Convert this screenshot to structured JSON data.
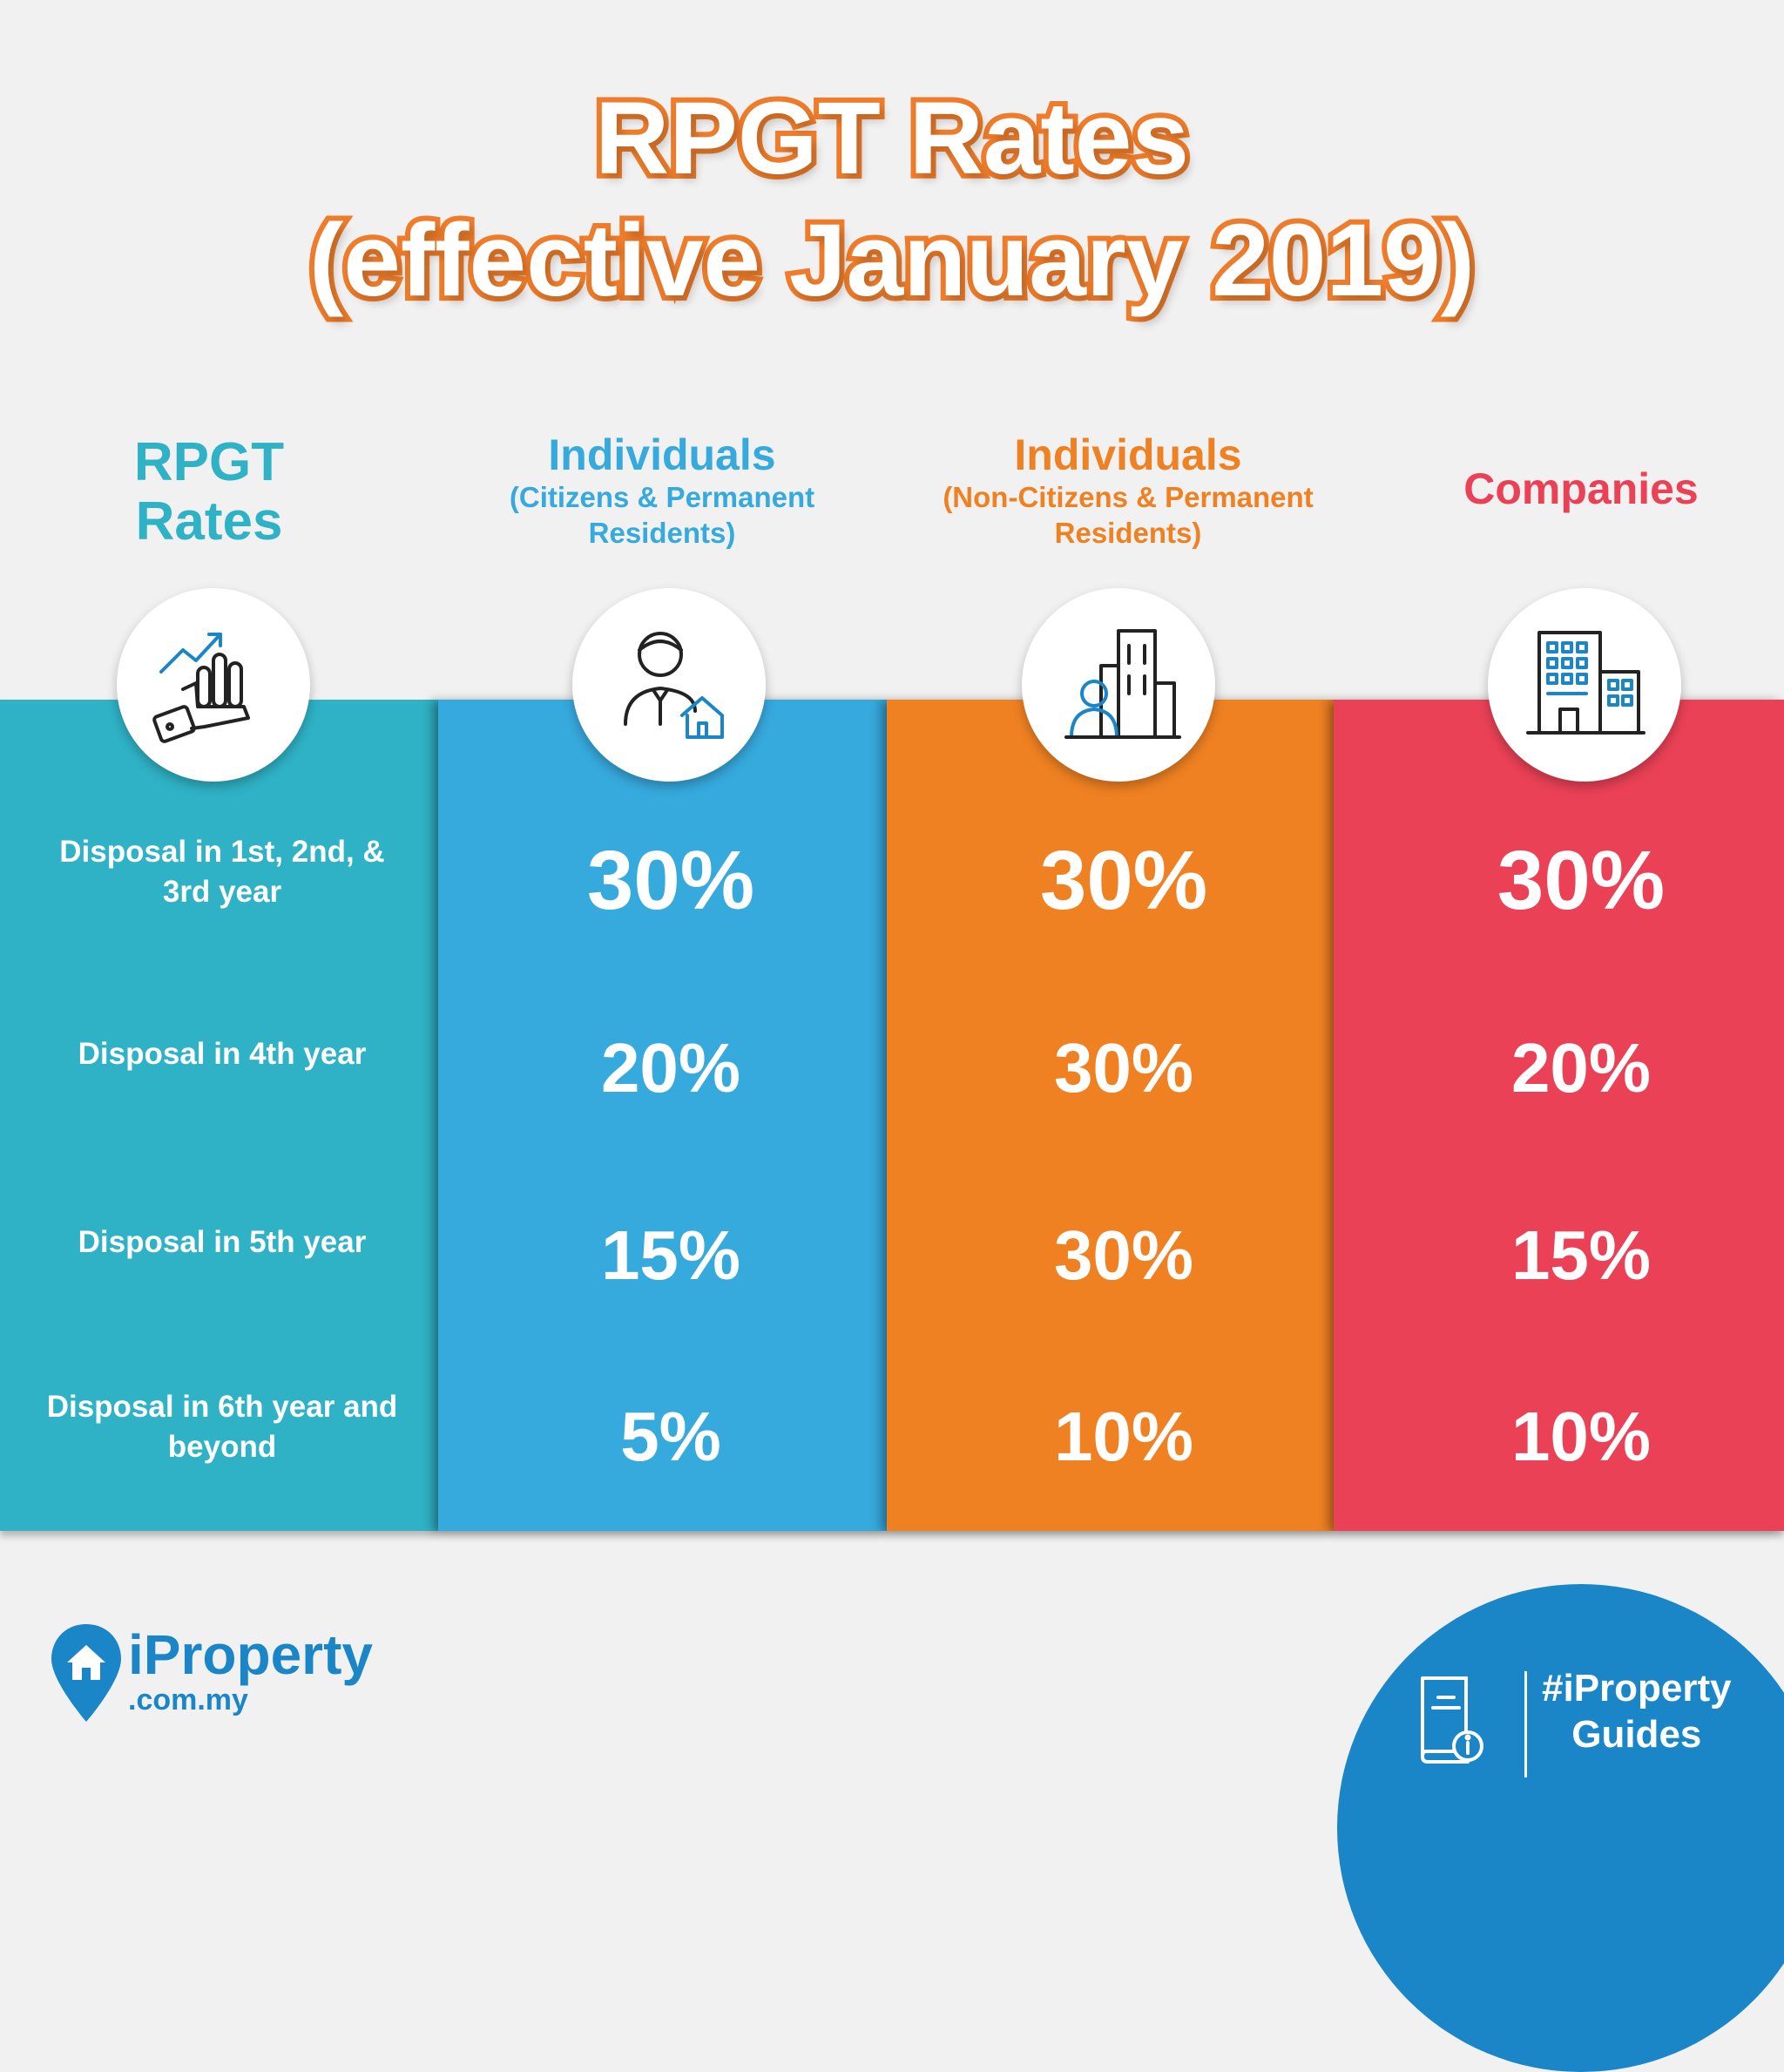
{
  "title": {
    "line1": "RPGT Rates",
    "line2": "(effective January 2019)"
  },
  "headers": [
    {
      "main": "RPGT",
      "sub": "Rates",
      "color": "#2fb2c6"
    },
    {
      "main": "Individuals",
      "sub": "(Citizens & Permanent Residents)",
      "color": "#36a9dd"
    },
    {
      "main": "Individuals",
      "sub": "(Non-Citizens & Permanent Residents)",
      "color": "#ef8122"
    },
    {
      "main": "Companies",
      "sub": "",
      "color": "#ea4156"
    }
  ],
  "icons": [
    "growth-hand-icon",
    "homeowner-icon",
    "business-person-building-icon",
    "office-building-icon"
  ],
  "rows": [
    {
      "label": "Disposal in 1st, 2nd, & 3rd year",
      "citizens": "30%",
      "non_citizens": "30%",
      "companies": "30%"
    },
    {
      "label": "Disposal in 4th year",
      "citizens": "20%",
      "non_citizens": "30%",
      "companies": "20%"
    },
    {
      "label": "Disposal in 5th year",
      "citizens": "15%",
      "non_citizens": "30%",
      "companies": "15%"
    },
    {
      "label": "Disposal in 6th year and beyond",
      "citizens": "5%",
      "non_citizens": "10%",
      "companies": "10%"
    }
  ],
  "footer": {
    "brand": "iProperty",
    "domain": ".com.my",
    "guide_line1": "#iProperty",
    "guide_line2": "Guides"
  },
  "colors": {
    "title_outline": "#ee7c2a",
    "rpgt_col": "#2fb2c6",
    "citizens_col": "#36a9dd",
    "non_citizens_col": "#ef8122",
    "companies_col": "#ea4156",
    "brand_blue": "#1a86c8"
  }
}
